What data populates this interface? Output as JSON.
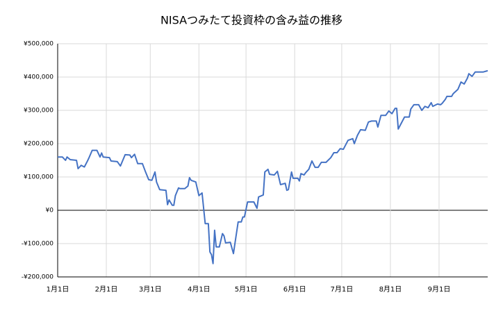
{
  "chart_data": {
    "type": "line",
    "title": "NISAつみたて投資枠の含み益の推移",
    "x": [
      0,
      3,
      5,
      6,
      8,
      12,
      13,
      15,
      17,
      19,
      20,
      22,
      25,
      27,
      28,
      29,
      33,
      34,
      38,
      40,
      43,
      46,
      47,
      49,
      51,
      54,
      56,
      58,
      60,
      62,
      63,
      65,
      69,
      70,
      71,
      73,
      74,
      75,
      77,
      78,
      81,
      83,
      84,
      85,
      88,
      90,
      92,
      94,
      96,
      97,
      98,
      99,
      100,
      101,
      103,
      105,
      106,
      107,
      110,
      112,
      113,
      115,
      117,
      118,
      119,
      121,
      125,
      127,
      128,
      131,
      132,
      134,
      135,
      138,
      140,
      142,
      145,
      146,
      147,
      149,
      150,
      153,
      154,
      155,
      157,
      158,
      160,
      162,
      164,
      166,
      168,
      171,
      174,
      176,
      178,
      180,
      182,
      185,
      188,
      189,
      191,
      193,
      196,
      198,
      200,
      203,
      204,
      206,
      209,
      211,
      213,
      215,
      216,
      217,
      219,
      221,
      224,
      225,
      227,
      230,
      232,
      234,
      236,
      238,
      239,
      242,
      244,
      245,
      247,
      248,
      251,
      252,
      255,
      257,
      259,
      261,
      262,
      264,
      266,
      269,
      271,
      274
    ],
    "series": [
      {
        "name": "含み益",
        "color": "#4472c4",
        "values": [
          160000,
          160000,
          150000,
          160000,
          152000,
          150000,
          125000,
          135000,
          130000,
          148000,
          158000,
          180000,
          180000,
          160000,
          172000,
          160000,
          158000,
          148000,
          146000,
          133000,
          167000,
          166000,
          158000,
          168000,
          140000,
          140000,
          115000,
          92000,
          90000,
          115000,
          85000,
          62000,
          60000,
          17000,
          31000,
          15000,
          15000,
          44000,
          67000,
          65000,
          65000,
          73000,
          98000,
          90000,
          85000,
          44000,
          52000,
          -40000,
          -40000,
          -125000,
          -133000,
          -160000,
          -60000,
          -110000,
          -110000,
          -70000,
          -77000,
          -98000,
          -96000,
          -130000,
          -98000,
          -35000,
          -35000,
          -20000,
          -20000,
          25000,
          25000,
          6000,
          40000,
          46000,
          115000,
          123000,
          108000,
          106000,
          117000,
          77000,
          81000,
          60000,
          62000,
          115000,
          96000,
          96000,
          88000,
          110000,
          106000,
          113000,
          123000,
          148000,
          129000,
          129000,
          144000,
          144000,
          158000,
          173000,
          173000,
          185000,
          183000,
          210000,
          215000,
          200000,
          225000,
          242000,
          240000,
          265000,
          268000,
          268000,
          250000,
          285000,
          285000,
          298000,
          290000,
          306000,
          306000,
          244000,
          262000,
          280000,
          280000,
          304000,
          317000,
          317000,
          300000,
          312000,
          308000,
          323000,
          312000,
          319000,
          317000,
          321000,
          333000,
          342000,
          342000,
          350000,
          363000,
          385000,
          379000,
          396000,
          410000,
          402000,
          415000,
          415000,
          415000,
          419000
        ]
      }
    ],
    "xlim": [
      0,
      274
    ],
    "xticks": [
      {
        "value": 0,
        "label": "1月1日"
      },
      {
        "value": 31,
        "label": "2月1日"
      },
      {
        "value": 59,
        "label": "3月1日"
      },
      {
        "value": 90,
        "label": "4月1日"
      },
      {
        "value": 120,
        "label": "5月1日"
      },
      {
        "value": 151,
        "label": "6月1日"
      },
      {
        "value": 181,
        "label": "7月1日"
      },
      {
        "value": 212,
        "label": "8月1日"
      },
      {
        "value": 243,
        "label": "9月1日"
      }
    ],
    "ylim": [
      -200000,
      500000
    ],
    "yticks": [
      {
        "value": -200000,
        "label": "-¥200,000"
      },
      {
        "value": -100000,
        "label": "-¥100,000"
      },
      {
        "value": 0,
        "label": "¥0"
      },
      {
        "value": 100000,
        "label": "¥100,000"
      },
      {
        "value": 200000,
        "label": "¥200,000"
      },
      {
        "value": 300000,
        "label": "¥300,000"
      },
      {
        "value": 400000,
        "label": "¥400,000"
      },
      {
        "value": 500000,
        "label": "¥500,000"
      }
    ],
    "grid": true
  }
}
